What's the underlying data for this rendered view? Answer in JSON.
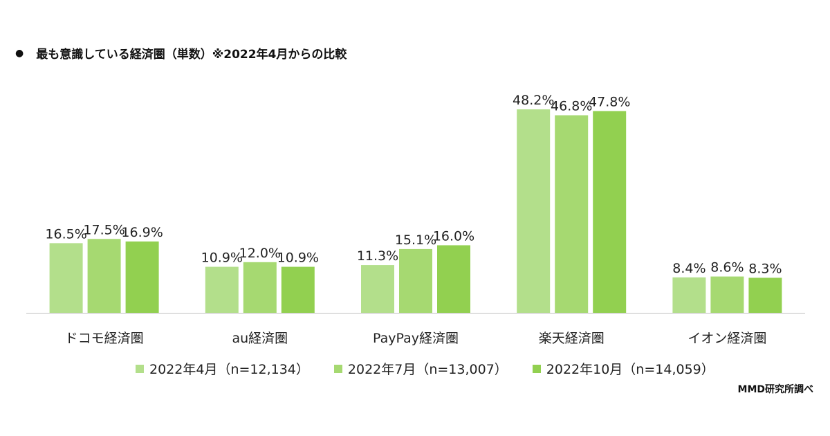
{
  "header": {
    "bullet": "●",
    "title": "最も意識している経済圏（単数）※2022年4月からの比較"
  },
  "source": "MMD研究所調べ",
  "colors": {
    "series": [
      "#b3df8b",
      "#a6d971",
      "#92d050"
    ],
    "axis": "#bfbfbf"
  },
  "chart_data": {
    "type": "bar",
    "title": "最も意識している経済圏（単数）※2022年4月からの比較",
    "categories": [
      "ドコモ経済圏",
      "au経済圏",
      "PayPay経済圏",
      "楽天経済圏",
      "イオン経済圏"
    ],
    "series": [
      {
        "name": "2022年4月（n=12,134）",
        "values": [
          16.5,
          10.9,
          11.3,
          48.2,
          8.4
        ],
        "labels": [
          "16.5%",
          "10.9%",
          "11.3%",
          "48.2%",
          "8.4%"
        ]
      },
      {
        "name": "2022年7月（n=13,007）",
        "values": [
          17.5,
          12.0,
          15.1,
          46.8,
          8.6
        ],
        "labels": [
          "17.5%",
          "12.0%",
          "15.1%",
          "46.8%",
          "8.6%"
        ]
      },
      {
        "name": "2022年10月（n=14,059）",
        "values": [
          16.9,
          10.9,
          16.0,
          47.8,
          8.3
        ],
        "labels": [
          "16.9%",
          "10.9%",
          "16.0%",
          "47.8%",
          "8.3%"
        ]
      }
    ],
    "ylim": [
      0,
      48.2
    ],
    "grid": false,
    "legend_position": "bottom"
  }
}
